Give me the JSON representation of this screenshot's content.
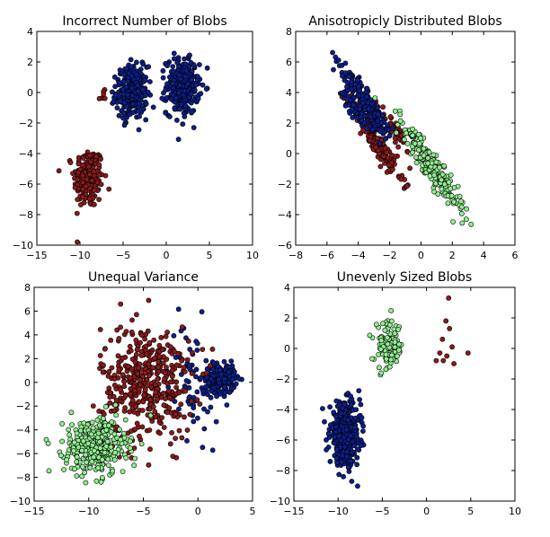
{
  "chart_data": [
    {
      "type": "scatter",
      "title": "Incorrect Number of Blobs",
      "xlim": [
        -15,
        10
      ],
      "ylim": [
        -10,
        4
      ],
      "xticks": [
        -15,
        -10,
        -5,
        0,
        5,
        10
      ],
      "yticks": [
        -10,
        -8,
        -6,
        -4,
        -2,
        0,
        2,
        4
      ],
      "series": [
        {
          "color": "#8b1a1a",
          "clusters": [
            {
              "cx": -9.0,
              "cy": -5.6,
              "sx": 0.85,
              "sy": 1.0,
              "n": 220
            },
            {
              "cx": -7.4,
              "cy": -0.3,
              "sx": 0.3,
              "sy": 0.2,
              "n": 6
            }
          ]
        },
        {
          "color": "#0c1f8a",
          "clusters": [
            {
              "cx": -4.0,
              "cy": 0.0,
              "sx": 0.9,
              "sy": 0.85,
              "n": 280
            },
            {
              "cx": 1.9,
              "cy": 0.4,
              "sx": 0.95,
              "sy": 0.9,
              "n": 280
            }
          ]
        }
      ]
    },
    {
      "type": "scatter",
      "title": "Anisotropicly Distributed Blobs",
      "xlim": [
        -8,
        6
      ],
      "ylim": [
        -6,
        8
      ],
      "xticks": [
        -8,
        -6,
        -4,
        -2,
        0,
        2,
        4,
        6
      ],
      "yticks": [
        -6,
        -4,
        -2,
        0,
        2,
        4,
        6,
        8
      ],
      "series": [
        {
          "color": "#8b1a1a",
          "clusters": [
            {
              "cx": -2.8,
              "cy": 0.7,
              "along": [
                1.0,
                -1.55
              ],
              "t": 0.85,
              "w": 0.25,
              "n": 160
            },
            {
              "cx": -1.7,
              "cy": 1.5,
              "along": [
                1.0,
                -1.55
              ],
              "t": 0.4,
              "w": 0.2,
              "n": 50
            }
          ]
        },
        {
          "color": "#0c1f8a",
          "clusters": [
            {
              "cx": -3.4,
              "cy": 3.2,
              "along": [
                1.0,
                -1.55
              ],
              "t": 0.85,
              "w": 0.25,
              "n": 200
            },
            {
              "cx": -4.1,
              "cy": 2.8,
              "along": [
                1.0,
                -1.55
              ],
              "t": 0.45,
              "w": 0.2,
              "n": 60
            }
          ]
        },
        {
          "color": "#90ee90",
          "clusters": [
            {
              "cx": 0.7,
              "cy": -0.9,
              "along": [
                1.0,
                -1.55
              ],
              "t": 1.0,
              "w": 0.28,
              "n": 240
            }
          ]
        }
      ]
    },
    {
      "type": "scatter",
      "title": "Unequal Variance",
      "xlim": [
        -15,
        5
      ],
      "ylim": [
        -10,
        8
      ],
      "xticks": [
        -15,
        -10,
        -5,
        0,
        5
      ],
      "yticks": [
        -10,
        -8,
        -6,
        -4,
        -2,
        0,
        2,
        4,
        6,
        8
      ],
      "series": [
        {
          "color": "#0c1f8a",
          "clusters": [
            {
              "cx": 2.0,
              "cy": 0.3,
              "sx": 0.7,
              "sy": 0.6,
              "n": 200
            },
            {
              "cx": -0.4,
              "cy": 0.2,
              "sx": 1.2,
              "sy": 2.4,
              "n": 70
            }
          ]
        },
        {
          "color": "#8b1a1a",
          "clusters": [
            {
              "cx": -4.7,
              "cy": 0.0,
              "sx": 2.1,
              "sy": 2.4,
              "n": 420
            }
          ]
        },
        {
          "color": "#90ee90",
          "clusters": [
            {
              "cx": -9.4,
              "cy": -5.4,
              "sx": 1.4,
              "sy": 1.2,
              "n": 330
            }
          ]
        }
      ]
    },
    {
      "type": "scatter",
      "title": "Unevenly Sized Blobs",
      "xlim": [
        -15,
        10
      ],
      "ylim": [
        -10,
        4
      ],
      "xticks": [
        -15,
        -10,
        -5,
        0,
        5,
        10
      ],
      "yticks": [
        -10,
        -8,
        -6,
        -4,
        -2,
        0,
        2,
        4
      ],
      "series": [
        {
          "color": "#0c1f8a",
          "clusters": [
            {
              "cx": -9.2,
              "cy": -5.6,
              "sx": 0.85,
              "sy": 1.0,
              "n": 420
            }
          ]
        },
        {
          "color": "#90ee90",
          "clusters": [
            {
              "cx": -4.3,
              "cy": 0.1,
              "sx": 0.8,
              "sy": 0.8,
              "n": 100
            }
          ]
        },
        {
          "color": "#8b1a1a",
          "points": [
            [
              2.5,
              3.3
            ],
            [
              2.2,
              1.8
            ],
            [
              2.6,
              1.3
            ],
            [
              1.8,
              0.6
            ],
            [
              2.9,
              0.1
            ],
            [
              1.5,
              -0.3
            ],
            [
              2.3,
              -0.5
            ],
            [
              1.1,
              -0.8
            ],
            [
              1.9,
              -0.8
            ],
            [
              3.1,
              -1.0
            ],
            [
              4.7,
              -0.3
            ]
          ]
        }
      ]
    }
  ]
}
